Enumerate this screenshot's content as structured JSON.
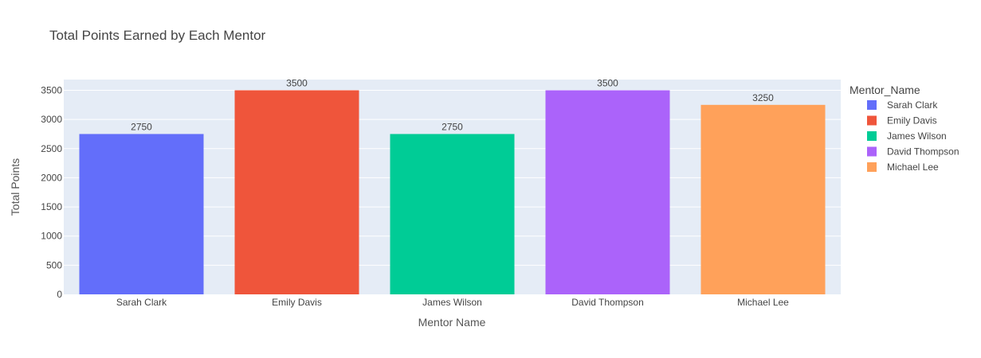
{
  "chart_data": {
    "type": "bar",
    "title": "Total Points Earned by Each Mentor",
    "xlabel": "Mentor Name",
    "ylabel": "Total Points",
    "categories": [
      "Sarah Clark",
      "Emily Davis",
      "James Wilson",
      "David Thompson",
      "Michael Lee"
    ],
    "values": [
      2750,
      3500,
      2750,
      3500,
      3250
    ],
    "colors": [
      "#636efa",
      "#ef553b",
      "#00cc96",
      "#ab63fa",
      "#ffa15a"
    ],
    "ylim": [
      0,
      3684
    ],
    "yticks": [
      0,
      500,
      1000,
      1500,
      2000,
      2500,
      3000,
      3500
    ],
    "grid": true,
    "background": "#e5ecf6",
    "legend_title": "Mentor_Name",
    "legend_position": "right"
  }
}
